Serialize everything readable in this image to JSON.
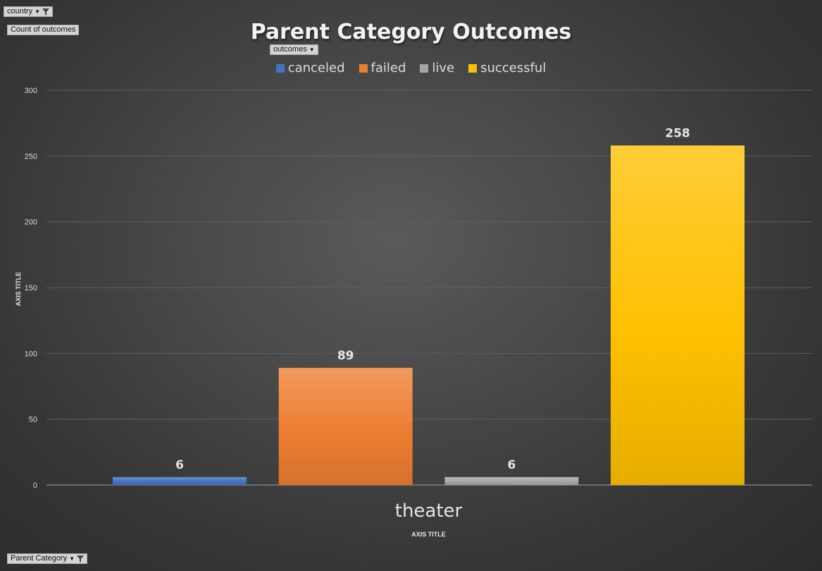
{
  "pivot_fields": {
    "filter_field": "country",
    "value_field": "Count of outcomes",
    "legend_field": "outcomes",
    "axis_field": "Parent Category"
  },
  "chart_data": {
    "type": "bar",
    "title": "Parent Category Outcomes",
    "categories": [
      "theater"
    ],
    "series": [
      {
        "name": "canceled",
        "values": [
          6
        ],
        "color": "#4472c4"
      },
      {
        "name": "failed",
        "values": [
          89
        ],
        "color": "#ed7d31"
      },
      {
        "name": "live",
        "values": [
          6
        ],
        "color": "#a5a5a5"
      },
      {
        "name": "successful",
        "values": [
          258
        ],
        "color": "#ffc000"
      }
    ],
    "xlabel": "AXIS TITLE",
    "ylabel": "AXIS TITLE",
    "ylim": [
      0,
      300
    ],
    "yticks": [
      "0",
      "50",
      "100",
      "150",
      "200",
      "250",
      "300"
    ],
    "grid": true,
    "legend_position": "top",
    "data_labels": true
  }
}
